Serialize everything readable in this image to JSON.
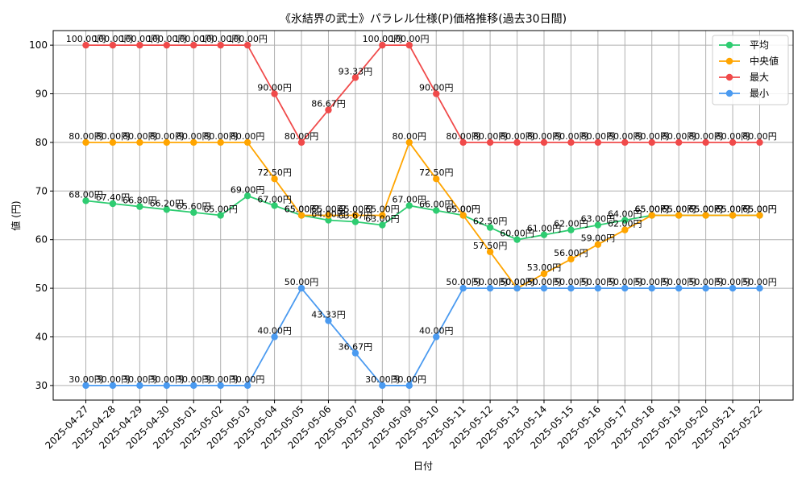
{
  "chart_data": {
    "type": "line",
    "title": "《氷結界の武士》パラレル仕様(P)価格推移(過去30日間)",
    "xlabel": "日付",
    "ylabel": "値 (円)",
    "ylim": [
      27,
      103
    ],
    "yticks": [
      30,
      40,
      50,
      60,
      70,
      80,
      90,
      100
    ],
    "grid": true,
    "legend_position": "top-right",
    "label_suffix": "円",
    "x": [
      "2025-04-27",
      "2025-04-28",
      "2025-04-29",
      "2025-04-30",
      "2025-05-01",
      "2025-05-02",
      "2025-05-03",
      "2025-05-04",
      "2025-05-05",
      "2025-05-06",
      "2025-05-07",
      "2025-05-08",
      "2025-05-09",
      "2025-05-10",
      "2025-05-11",
      "2025-05-12",
      "2025-05-13",
      "2025-05-14",
      "2025-05-15",
      "2025-05-16",
      "2025-05-17",
      "2025-05-18",
      "2025-05-19",
      "2025-05-20",
      "2025-05-21",
      "2025-05-22"
    ],
    "series": [
      {
        "name": "平均",
        "color": "#2ecc71",
        "values": [
          68.0,
          67.4,
          66.8,
          66.2,
          65.6,
          65.0,
          69.0,
          67.0,
          65.0,
          64.0,
          63.67,
          63.0,
          67.0,
          66.0,
          65.0,
          62.5,
          60.0,
          61.0,
          62.0,
          63.0,
          64.0,
          65.0,
          65.0,
          65.0,
          65.0,
          65.0
        ]
      },
      {
        "name": "中央値",
        "color": "#ffa500",
        "values": [
          80.0,
          80.0,
          80.0,
          80.0,
          80.0,
          80.0,
          80.0,
          72.5,
          65.0,
          65.0,
          65.0,
          65.0,
          80.0,
          72.5,
          65.0,
          57.5,
          50.0,
          53.0,
          56.0,
          59.0,
          62.0,
          65.0,
          65.0,
          65.0,
          65.0,
          65.0
        ]
      },
      {
        "name": "最大",
        "color": "#f04a4a",
        "values": [
          100.0,
          100.0,
          100.0,
          100.0,
          100.0,
          100.0,
          100.0,
          90.0,
          80.0,
          86.67,
          93.33,
          100.0,
          100.0,
          90.0,
          80.0,
          80.0,
          80.0,
          80.0,
          80.0,
          80.0,
          80.0,
          80.0,
          80.0,
          80.0,
          80.0,
          80.0
        ]
      },
      {
        "name": "最小",
        "color": "#4a9af0",
        "values": [
          30.0,
          30.0,
          30.0,
          30.0,
          30.0,
          30.0,
          30.0,
          40.0,
          50.0,
          43.33,
          36.67,
          30.0,
          30.0,
          40.0,
          50.0,
          50.0,
          50.0,
          50.0,
          50.0,
          50.0,
          50.0,
          50.0,
          50.0,
          50.0,
          50.0,
          50.0
        ]
      }
    ]
  }
}
